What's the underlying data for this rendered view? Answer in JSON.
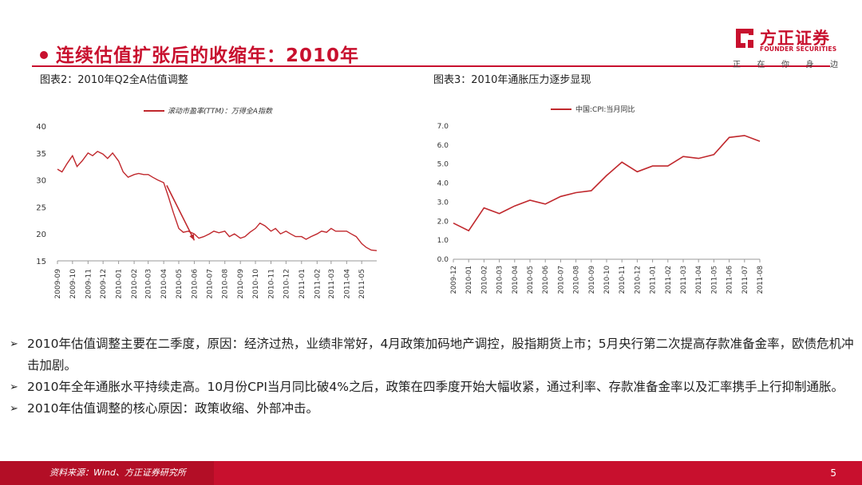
{
  "slide": {
    "title": "连续估值扩张后的收缩年：2010年",
    "page_number": "5"
  },
  "logo": {
    "name_cn": "方正证券",
    "name_en": "FOUNDER SECURITIES",
    "slogan": [
      "正",
      "在",
      "你",
      "身",
      "边"
    ]
  },
  "footer": {
    "source": "资料来源：Wind、方正证券研究所"
  },
  "bullets": [
    "2010年估值调整主要在二季度，原因：经济过热，业绩非常好，4月政策加码地产调控，股指期货上市；5月央行第二次提高存款准备金率，欧债危机冲击加剧。",
    "2010年全年通胀水平持续走高。10月份CPI当月同比破4%之后，政策在四季度开始大幅收紧，通过利率、存款准备金率以及汇率携手上行抑制通胀。",
    "2010年估值调整的核心原因：政策收缩、外部冲击。"
  ],
  "colors": {
    "accent": "#c8102e",
    "series": "#c0282d"
  },
  "chart_data": [
    {
      "type": "line",
      "caption": "图表2：2010年Q2全A估值调整",
      "legend": "滚动市盈率(TTM)：万得全A指数",
      "legend_position": "top",
      "ylim": [
        15,
        40
      ],
      "yticks": [
        15,
        20,
        25,
        30,
        35,
        40
      ],
      "xtick_labels": [
        "2009-09",
        "2009-10",
        "2009-11",
        "2009-12",
        "2010-01",
        "2010-02",
        "2010-03",
        "2010-04",
        "2010-05",
        "2010-06",
        "2010-07",
        "2010-08",
        "2010-09",
        "2010-10",
        "2010-11",
        "2010-12",
        "2011-01",
        "2011-02",
        "2011-03",
        "2011-04",
        "2011-05"
      ],
      "grid": false,
      "series": [
        {
          "x": [
            "2009-09-01",
            "2009-09-10",
            "2009-09-20",
            "2009-10-01",
            "2009-10-10",
            "2009-10-20",
            "2009-11-01",
            "2009-11-10",
            "2009-11-20",
            "2009-12-01",
            "2009-12-10",
            "2009-12-20",
            "2010-01-01",
            "2010-01-10",
            "2010-01-20",
            "2010-02-01",
            "2010-02-10",
            "2010-02-20",
            "2010-03-01",
            "2010-03-10",
            "2010-03-20",
            "2010-04-01",
            "2010-04-10",
            "2010-04-20",
            "2010-05-01",
            "2010-05-10",
            "2010-05-20",
            "2010-06-01",
            "2010-06-10",
            "2010-06-20",
            "2010-07-01",
            "2010-07-10",
            "2010-07-20",
            "2010-08-01",
            "2010-08-10",
            "2010-08-20",
            "2010-09-01",
            "2010-09-10",
            "2010-09-20",
            "2010-10-01",
            "2010-10-10",
            "2010-10-20",
            "2010-11-01",
            "2010-11-10",
            "2010-11-20",
            "2010-12-01",
            "2010-12-10",
            "2010-12-20",
            "2011-01-01",
            "2011-01-10",
            "2011-01-20",
            "2011-02-01",
            "2011-02-10",
            "2011-02-20",
            "2011-03-01",
            "2011-03-10",
            "2011-03-20",
            "2011-04-01",
            "2011-04-10",
            "2011-04-20",
            "2011-05-01",
            "2011-05-10",
            "2011-05-20",
            "2011-05-31"
          ],
          "y": [
            32.0,
            31.5,
            33.0,
            34.5,
            32.5,
            33.5,
            35.0,
            34.5,
            35.3,
            34.8,
            34.0,
            35.0,
            33.5,
            31.5,
            30.5,
            31.0,
            31.2,
            31.0,
            31.0,
            30.5,
            30.0,
            29.5,
            27.0,
            24.0,
            21.0,
            20.3,
            20.5,
            20.0,
            19.2,
            19.5,
            20.0,
            20.5,
            20.2,
            20.5,
            19.5,
            20.0,
            19.2,
            19.5,
            20.3,
            21.0,
            22.0,
            21.5,
            20.5,
            21.0,
            20.0,
            20.5,
            20.0,
            19.5,
            19.5,
            19.0,
            19.5,
            20.0,
            20.5,
            20.3,
            21.0,
            20.5,
            20.5,
            20.5,
            20.0,
            19.5,
            18.2,
            17.5,
            17.0,
            16.9
          ]
        }
      ],
      "annotation": {
        "type": "arrow",
        "from": [
          "2010-04-07",
          29.0
        ],
        "to": [
          "2010-06-01",
          18.8
        ]
      }
    },
    {
      "type": "line",
      "caption": "图表3：2010年通胀压力逐步显现",
      "legend": "中国:CPI:当月同比",
      "legend_position": "top",
      "ylim": [
        0,
        7
      ],
      "yticks": [
        "0.0",
        "1.0",
        "2.0",
        "3.0",
        "4.0",
        "5.0",
        "6.0",
        "7.0"
      ],
      "grid": false,
      "categories": [
        "2009-12",
        "2010-01",
        "2010-02",
        "2010-03",
        "2010-04",
        "2010-05",
        "2010-06",
        "2010-07",
        "2010-08",
        "2010-09",
        "2010-10",
        "2010-11",
        "2010-12",
        "2011-01",
        "2011-02",
        "2011-03",
        "2011-04",
        "2011-05",
        "2011-06",
        "2011-07",
        "2011-08"
      ],
      "series": [
        {
          "values": [
            1.9,
            1.5,
            2.7,
            2.4,
            2.8,
            3.1,
            2.9,
            3.3,
            3.5,
            3.6,
            4.4,
            5.1,
            4.6,
            4.9,
            4.9,
            5.4,
            5.3,
            5.5,
            6.4,
            6.5,
            6.2
          ]
        }
      ]
    }
  ]
}
